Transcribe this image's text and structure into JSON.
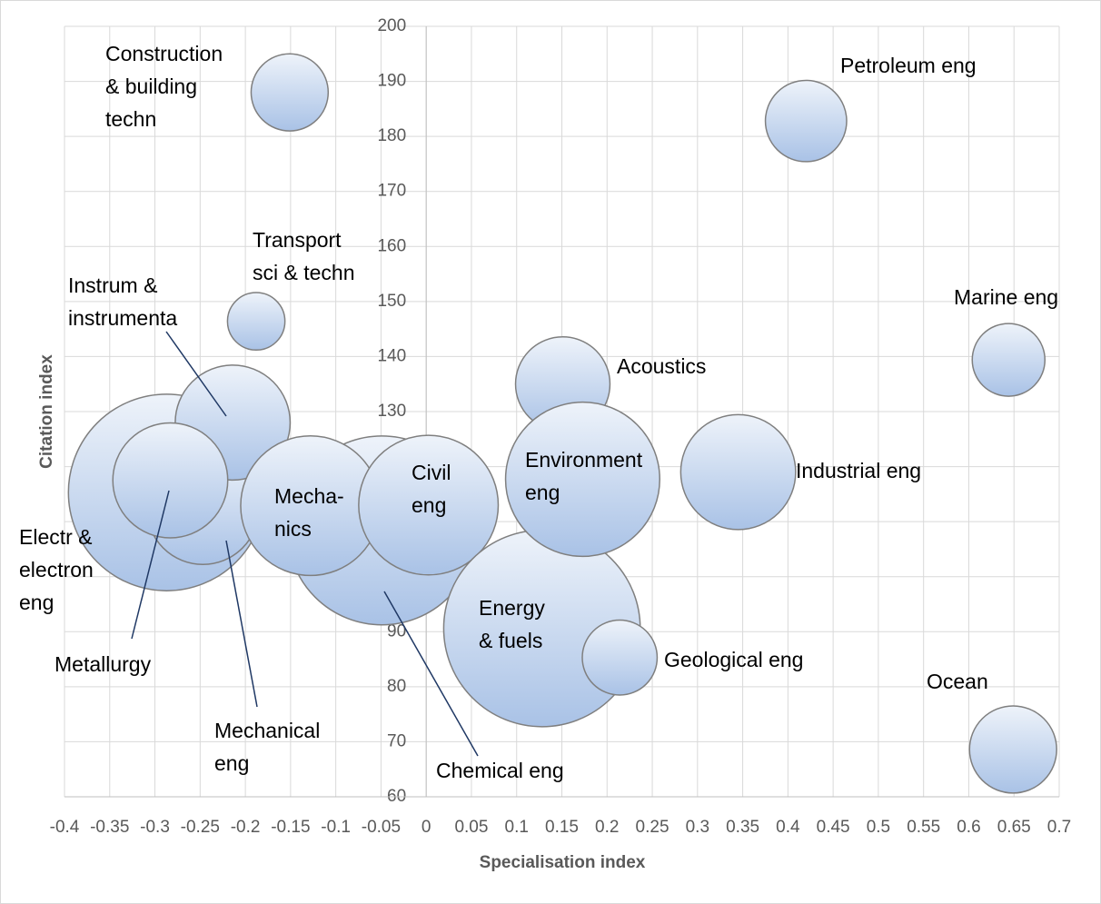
{
  "chart_data": {
    "type": "bubble",
    "x_label": "Specialisation index",
    "y_label": "Citation index",
    "color": "#a9c2e6",
    "grid": true,
    "xlim": [
      -0.4,
      0.7
    ],
    "xticks": [
      -0.4,
      -0.35,
      -0.3,
      -0.25,
      -0.2,
      -0.15,
      -0.1,
      -0.05,
      0,
      0.05,
      0.1,
      0.15,
      0.2,
      0.25,
      0.3,
      0.35,
      0.4,
      0.45,
      0.5,
      0.55,
      0.6,
      0.65,
      0.7
    ],
    "ylim": [
      60,
      200
    ],
    "yticks": [
      60,
      70,
      80,
      90,
      100,
      110,
      120,
      130,
      140,
      150,
      160,
      170,
      180,
      190,
      200
    ],
    "labels": [
      [
        "Electr &",
        "electron",
        "eng"
      ],
      [
        "Mechanical",
        "eng"
      ],
      [
        "Instrum &",
        "instrumenta"
      ],
      [
        "Metallurgy"
      ],
      [
        "Chemical eng"
      ],
      [
        "Mecha-",
        "nics"
      ],
      [
        "Civil",
        "eng"
      ],
      [
        "Energy",
        "& fuels"
      ],
      [
        "Geological eng"
      ],
      [
        "Acoustics"
      ],
      [
        "Environment",
        "eng"
      ],
      [
        "Industrial eng"
      ],
      [
        "Construction",
        "& building",
        "techn"
      ],
      [
        "Petroleum eng"
      ],
      [
        "Transport",
        "sci & techn"
      ],
      [
        "Marine eng"
      ],
      [
        "Ocean"
      ]
    ],
    "x": [
      -0.287,
      -0.247,
      -0.214,
      -0.283,
      -0.049,
      -0.128,
      0.0025,
      0.128,
      0.214,
      0.151,
      0.173,
      0.345,
      -0.151,
      0.42,
      -0.188,
      0.644,
      0.649
    ],
    "values": [
      115.3,
      112.4,
      128,
      117.5,
      108.4,
      112.9,
      113,
      90.6,
      85.3,
      135,
      117.7,
      119,
      188,
      182.8,
      146.4,
      139.4,
      68.6
    ],
    "sizes": [
      117,
      38,
      40,
      40,
      108,
      59,
      59,
      117,
      17,
      27,
      72,
      40,
      18,
      20,
      10,
      16,
      23
    ]
  }
}
